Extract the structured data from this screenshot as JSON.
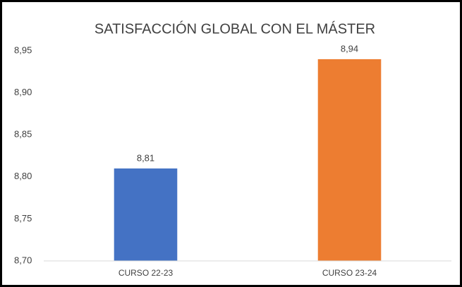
{
  "chart_data": {
    "type": "bar",
    "title": "SATISFACCIÓN GLOBAL CON EL MÁSTER",
    "categories": [
      "CURSO 22-23",
      "CURSO 23-24"
    ],
    "values": [
      8.81,
      8.94
    ],
    "value_labels": [
      "8,81",
      "8,94"
    ],
    "colors": [
      "#4472c4",
      "#ed7d31"
    ],
    "ylim": [
      8.7,
      8.95
    ],
    "yticks": [
      {
        "value": 8.7,
        "label": "8,70"
      },
      {
        "value": 8.75,
        "label": "8,75"
      },
      {
        "value": 8.8,
        "label": "8,80"
      },
      {
        "value": 8.85,
        "label": "8,85"
      },
      {
        "value": 8.9,
        "label": "8,90"
      },
      {
        "value": 8.95,
        "label": "8,95"
      }
    ],
    "grid": false
  }
}
